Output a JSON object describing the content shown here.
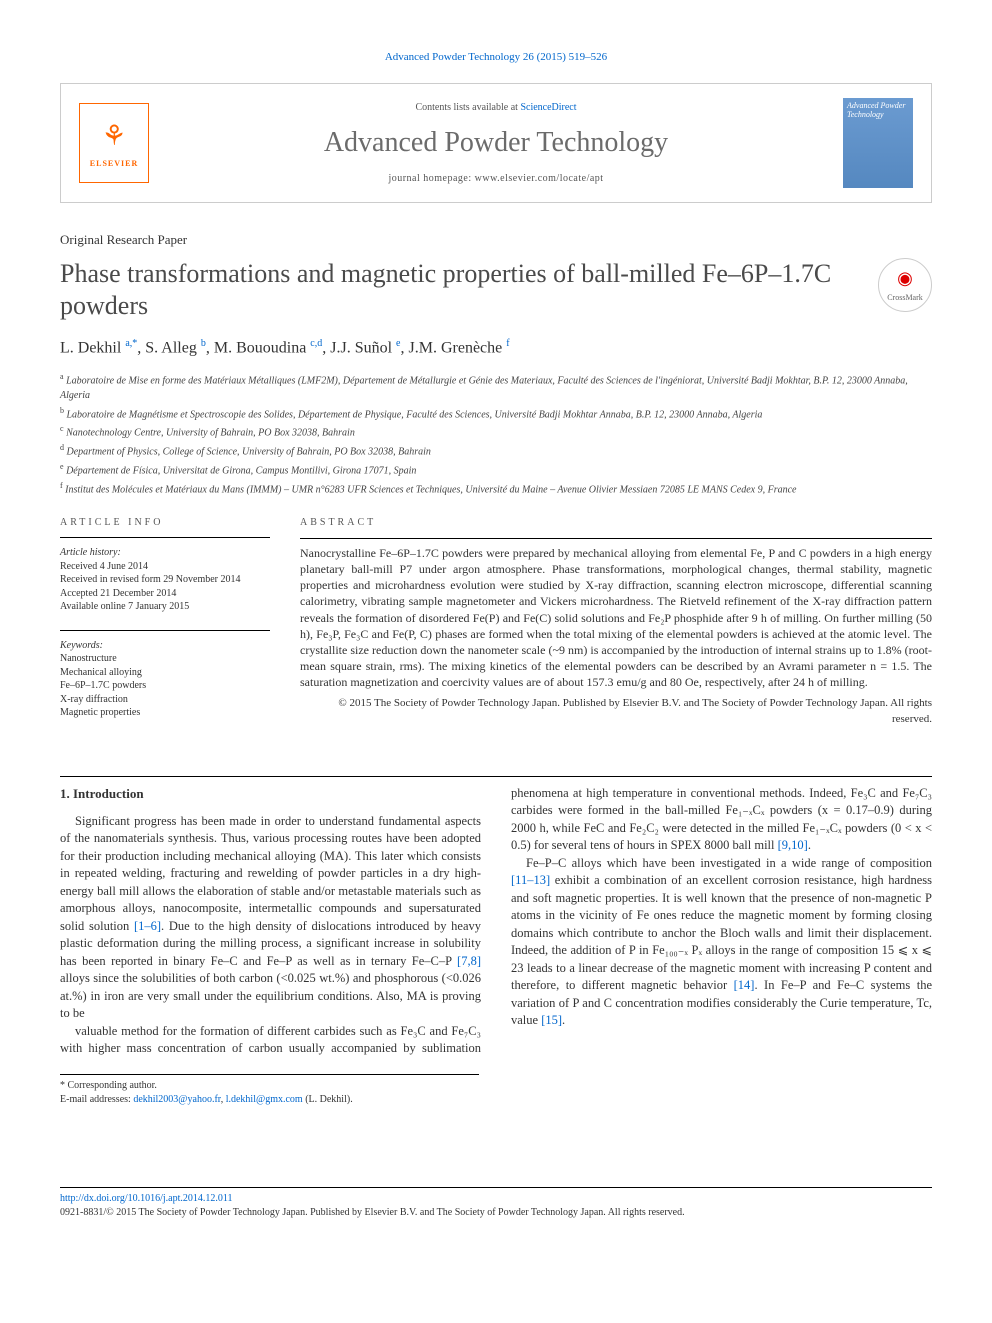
{
  "citation": "Advanced Powder Technology 26 (2015) 519–526",
  "masthead": {
    "contents_prefix": "Contents lists available at ",
    "contents_link": "ScienceDirect",
    "journal_name": "Advanced Powder Technology",
    "homepage_prefix": "journal homepage: ",
    "homepage_url": "www.elsevier.com/locate/apt",
    "publisher": "ELSEVIER",
    "cover_title": "Advanced Powder Technology"
  },
  "paper_type": "Original Research Paper",
  "title": "Phase transformations and magnetic properties of ball-milled Fe–6P–1.7C powders",
  "crossmark_label": "CrossMark",
  "authors_html": "L. Dekhil <sup>a,*</sup>, S. Alleg <sup>b</sup>, M. Bououdina <sup>c,d</sup>, J.J. Suñol <sup>e</sup>, J.M. Grenèche <sup>f</sup>",
  "affiliations": [
    "a Laboratoire de Mise en forme des Matériaux Métalliques (LMF2M), Département de Métallurgie et Génie des Materiaux, Faculté des Sciences de l'ingéniorat, Université Badji Mokhtar, B.P. 12, 23000 Annaba, Algeria",
    "b Laboratoire de Magnétisme et Spectroscopie des Solides, Département de Physique, Faculté des Sciences, Université Badji Mokhtar Annaba, B.P. 12, 23000 Annaba, Algeria",
    "c Nanotechnology Centre, University of Bahrain, PO Box 32038, Bahrain",
    "d Department of Physics, College of Science, University of Bahrain, PO Box 32038, Bahrain",
    "e Département de Física, Universitat de Girona, Campus Montilivi, Girona 17071, Spain",
    "f Institut des Molécules et Matériaux du Mans (IMMM) – UMR n°6283 UFR Sciences et Techniques, Université du Maine – Avenue Olivier Messiaen 72085 LE MANS Cedex 9, France"
  ],
  "article_info": {
    "heading": "ARTICLE INFO",
    "history_label": "Article history:",
    "history": [
      "Received 4 June 2014",
      "Received in revised form 29 November 2014",
      "Accepted 21 December 2014",
      "Available online 7 January 2015"
    ],
    "keywords_label": "Keywords:",
    "keywords": [
      "Nanostructure",
      "Mechanical alloying",
      "Fe–6P–1.7C powders",
      "X-ray diffraction",
      "Magnetic properties"
    ]
  },
  "abstract": {
    "heading": "ABSTRACT",
    "text": "Nanocrystalline Fe–6P–1.7C powders were prepared by mechanical alloying from elemental Fe, P and C powders in a high energy planetary ball-mill P7 under argon atmosphere. Phase transformations, morphological changes, thermal stability, magnetic properties and microhardness evolution were studied by X-ray diffraction, scanning electron microscope, differential scanning calorimetry, vibrating sample magnetometer and Vickers microhardness. The Rietveld refinement of the X-ray diffraction pattern reveals the formation of disordered Fe(P) and Fe(C) solid solutions and Fe₂P phosphide after 9 h of milling. On further milling (50 h), Fe₃P, Fe₃C and Fe(P, C) phases are formed when the total mixing of the elemental powders is achieved at the atomic level. The crystallite size reduction down the nanometer scale (~9 nm) is accompanied by the introduction of internal strains up to 1.8% (root-mean square strain, rms). The mixing kinetics of the elemental powders can be described by an Avrami parameter n = 1.5. The saturation magnetization and coercivity values are of about 157.3 emu/g and 80 Oe, respectively, after 24 h of milling.",
    "copyright": "© 2015 The Society of Powder Technology Japan. Published by Elsevier B.V. and The Society of Powder Technology Japan. All rights reserved."
  },
  "section1": {
    "heading": "1. Introduction",
    "para1": "Significant progress has been made in order to understand fundamental aspects of the nanomaterials synthesis. Thus, various processing routes have been adopted for their production including mechanical alloying (MA). This later which consists in repeated welding, fracturing and rewelding of powder particles in a dry high-energy ball mill allows the elaboration of stable and/or metastable materials such as amorphous alloys, nanocomposite, intermetallic compounds and supersaturated solid solution [1–6]. Due to the high density of dislocations introduced by heavy plastic deformation during the milling process, a significant increase in solubility has been reported in binary Fe–C and Fe–P as well as in ternary Fe–C–P [7,8] alloys since the solubilities of both carbon (<0.025 wt.%) and phosphorous (<0.026 at.%) in iron are very small under the equilibrium conditions. Also, MA is proving to be",
    "para2": "valuable method for the formation of different carbides such as Fe₃C and Fe₇C₃ with higher mass concentration of carbon usually accompanied by sublimation phenomena at high temperature in conventional methods. Indeed, Fe₃C and Fe₇C₃ carbides were formed in the ball-milled Fe₁₋ₓCₓ powders (x = 0.17–0.9) during 2000 h, while FeC and Fe₂C₂ were detected in the milled Fe₁₋ₓCₓ powders (0 < x < 0.5) for several tens of hours in SPEX 8000 ball mill [9,10].",
    "para3": "Fe–P–C alloys which have been investigated in a wide range of composition [11–13] exhibit a combination of an excellent corrosion resistance, high hardness and soft magnetic properties. It is well known that the presence of non-magnetic P atoms in the vicinity of Fe ones reduce the magnetic moment by forming closing domains which contribute to anchor the Bloch walls and limit their displacement. Indeed, the addition of P in Fe₁₀₀₋ₓ Pₓ alloys in the range of composition 15 ⩽ x ⩽ 23 leads to a linear decrease of the magnetic moment with increasing P content and therefore, to different magnetic behavior [14]. In Fe–P and Fe–C systems the variation of P and C concentration modifies considerably the Curie temperature, Tc, value [15]."
  },
  "footnote": {
    "corr": "* Corresponding author.",
    "email_label": "E-mail addresses: ",
    "email1": "dekhil2003@yahoo.fr",
    "email2": "l.dekhil@gmx.com",
    "email_suffix": " (L. Dekhil)."
  },
  "footer": {
    "doi_url": "http://dx.doi.org/10.1016/j.apt.2014.12.011",
    "issn_line": "0921-8831/© 2015 The Society of Powder Technology Japan. Published by Elsevier B.V. and The Society of Powder Technology Japan. All rights reserved."
  },
  "colors": {
    "link": "#0066cc",
    "accent": "#ff6600",
    "heading_gray": "#6b6b6b",
    "text": "#333333",
    "rule": "#000000"
  }
}
